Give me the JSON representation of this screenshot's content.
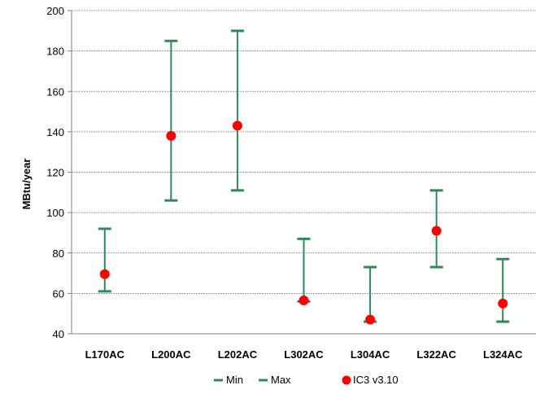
{
  "chart_data": {
    "type": "errorbar",
    "categories": [
      "L170AC",
      "L200AC",
      "L202AC",
      "L302AC",
      "L304AC",
      "L322AC",
      "L324AC"
    ],
    "series": [
      {
        "name": "Min",
        "values": [
          61,
          106,
          111,
          56,
          46,
          73,
          46
        ]
      },
      {
        "name": "Max",
        "values": [
          92,
          185,
          190,
          87,
          73,
          111,
          77
        ]
      },
      {
        "name": "IC3 v3.10",
        "values": [
          69.5,
          138,
          143,
          56.5,
          47,
          91,
          55
        ]
      }
    ],
    "title": "",
    "xlabel": "",
    "ylabel": "MBtu/year",
    "ylim": [
      40,
      200
    ],
    "yticks": [
      "40",
      "60",
      "80",
      "100",
      "120",
      "140",
      "160",
      "180",
      "200"
    ],
    "grid": true,
    "legend_position": "bottom",
    "colors": {
      "range": "#2e8b57",
      "point": "#ff0000",
      "grid": "#808080",
      "axis": "#808080"
    }
  }
}
